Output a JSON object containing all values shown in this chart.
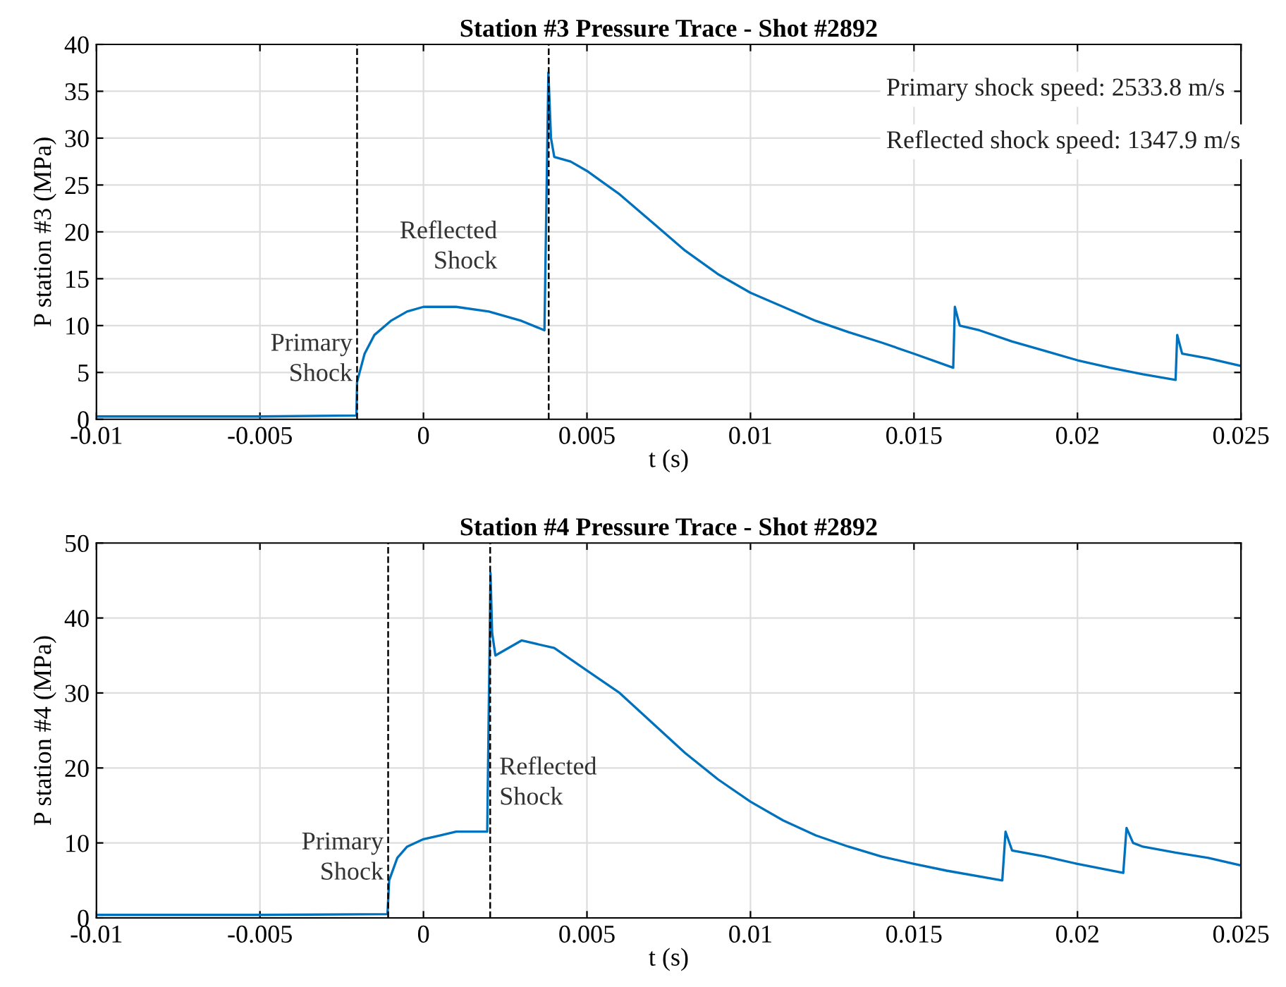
{
  "chart_data": [
    {
      "type": "line",
      "title": "Station #3 Pressure Trace - Shot #2892",
      "xlabel": "t (s)",
      "ylabel": "P station #3 (MPa)",
      "series": [
        {
          "color": "#0072bd",
          "x": [
            -0.01,
            -0.005,
            -0.00205,
            -0.00203,
            -0.0018,
            -0.0015,
            -0.001,
            -0.0005,
            0,
            0.001,
            0.002,
            0.003,
            0.0037,
            0.00382,
            0.0039,
            0.004,
            0.0045,
            0.005,
            0.006,
            0.007,
            0.008,
            0.009,
            0.01,
            0.011,
            0.012,
            0.013,
            0.014,
            0.015,
            0.0162,
            0.01625,
            0.0164,
            0.017,
            0.018,
            0.019,
            0.02,
            0.021,
            0.022,
            0.023,
            0.02305,
            0.0232,
            0.024,
            0.025
          ],
          "values": [
            0.3,
            0.3,
            0.4,
            4,
            7,
            9,
            10.5,
            11.5,
            12,
            12,
            11.5,
            10.5,
            9.5,
            37,
            30,
            28,
            27.5,
            26.5,
            24,
            21,
            18,
            15.5,
            13.5,
            12,
            10.5,
            9.3,
            8.2,
            7,
            5.5,
            12,
            10,
            9.5,
            8.3,
            7.3,
            6.3,
            5.5,
            4.8,
            4.2,
            9,
            7,
            6.5,
            5.7
          ]
        }
      ],
      "xlim": [
        -0.01,
        0.025
      ],
      "xticks": [
        -0.01,
        -0.005,
        0,
        0.005,
        0.01,
        0.015,
        0.02,
        0.025
      ],
      "ylim": [
        0,
        40
      ],
      "yticks": [
        0,
        5,
        10,
        15,
        20,
        25,
        30,
        35,
        40
      ],
      "grid": true,
      "marker": "none",
      "line_style": "solid",
      "ref_lines": [
        {
          "axis": "x",
          "value": -0.00203,
          "color": "#000000",
          "line_style": "dashed"
        },
        {
          "axis": "x",
          "value": 0.00383,
          "color": "#000000",
          "line_style": "dashed"
        }
      ],
      "annotations": [
        "Primary\nShock",
        "Reflected\nShock",
        "Primary shock speed: 2533.8 m/s",
        "Reflected shock speed: 1347.9 m/s"
      ]
    },
    {
      "type": "line",
      "title": "Station #4 Pressure Trace - Shot #2892",
      "xlabel": "t (s)",
      "ylabel": "P station #4 (MPa)",
      "series": [
        {
          "color": "#0072bd",
          "x": [
            -0.01,
            -0.005,
            -0.0011,
            -0.00105,
            -0.0008,
            -0.0005,
            0,
            0.0005,
            0.001,
            0.0015,
            0.00195,
            0.00205,
            0.0021,
            0.0022,
            0.003,
            0.004,
            0.005,
            0.006,
            0.007,
            0.008,
            0.009,
            0.01,
            0.011,
            0.012,
            0.013,
            0.014,
            0.015,
            0.016,
            0.0177,
            0.0178,
            0.018,
            0.019,
            0.02,
            0.0214,
            0.0215,
            0.0217,
            0.022,
            0.023,
            0.024,
            0.025
          ],
          "values": [
            0.4,
            0.4,
            0.5,
            5,
            8,
            9.5,
            10.5,
            11,
            11.5,
            11.5,
            11.5,
            46,
            38,
            35,
            37,
            36,
            33,
            30,
            26,
            22,
            18.5,
            15.5,
            13,
            11,
            9.5,
            8.2,
            7.2,
            6.3,
            5,
            11.5,
            9,
            8.2,
            7.2,
            6,
            12,
            10,
            9.5,
            8.7,
            8,
            7
          ]
        }
      ],
      "xlim": [
        -0.01,
        0.025
      ],
      "xticks": [
        -0.01,
        -0.005,
        0,
        0.005,
        0.01,
        0.015,
        0.02,
        0.025
      ],
      "ylim": [
        0,
        50
      ],
      "yticks": [
        0,
        10,
        20,
        30,
        40,
        50
      ],
      "grid": true,
      "marker": "none",
      "line_style": "solid",
      "ref_lines": [
        {
          "axis": "x",
          "value": -0.00108,
          "color": "#000000",
          "line_style": "dashed"
        },
        {
          "axis": "x",
          "value": 0.00204,
          "color": "#000000",
          "line_style": "dashed"
        }
      ],
      "annotations": [
        "Primary\nShock",
        "Reflected\nShock"
      ]
    }
  ]
}
